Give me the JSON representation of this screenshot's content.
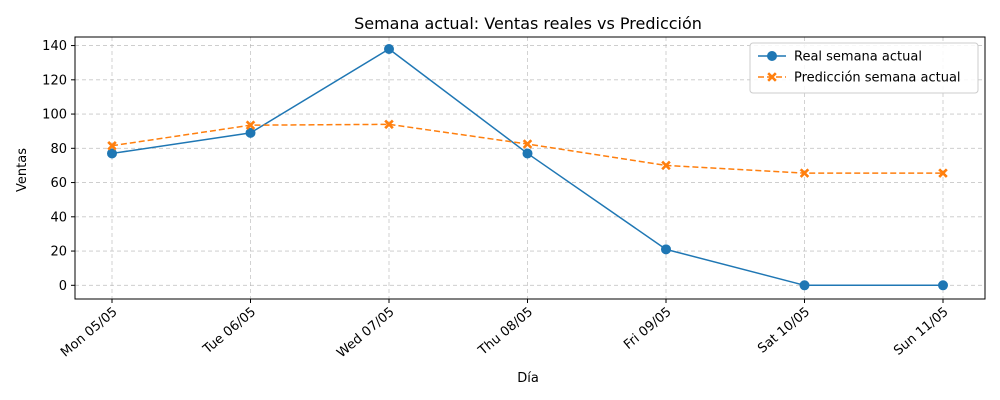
{
  "chart_data": {
    "type": "line",
    "title": "Semana actual: Ventas reales vs Predicción",
    "xlabel": "Día",
    "ylabel": "Ventas",
    "categories": [
      "Mon 05/05",
      "Tue 06/05",
      "Wed 07/05",
      "Thu 08/05",
      "Fri 09/05",
      "Sat 10/05",
      "Sun 11/05"
    ],
    "ylim": [
      -8,
      145
    ],
    "yticks": [
      0,
      20,
      40,
      60,
      80,
      100,
      120,
      140
    ],
    "grid": true,
    "legend_position": "top-right",
    "series": [
      {
        "name": "Real semana actual",
        "values": [
          77,
          89,
          138,
          77,
          21,
          0,
          0
        ],
        "color": "#1f77b4",
        "marker": "circle",
        "linestyle": "solid"
      },
      {
        "name": "Predicción semana actual",
        "values": [
          81.5,
          93.5,
          94,
          82.5,
          70,
          65.5,
          65.5
        ],
        "color": "#ff7f0e",
        "marker": "x",
        "linestyle": "dashed"
      }
    ]
  }
}
